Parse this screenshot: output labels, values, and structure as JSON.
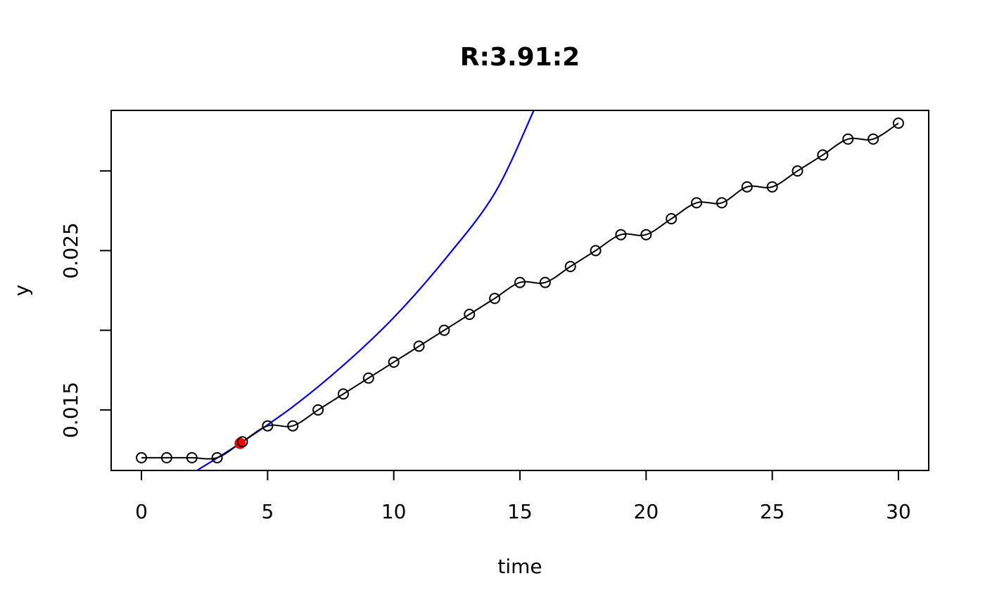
{
  "chart_data": {
    "type": "scatter",
    "title": "R:3.91:2",
    "xlabel": "time",
    "ylabel": "y",
    "xlim": [
      -1.2,
      31.2
    ],
    "ylim": [
      0.0112,
      0.0338
    ],
    "x_ticks": [
      0,
      5,
      10,
      15,
      20,
      25,
      30
    ],
    "x_tick_labels": [
      "0",
      "5",
      "10",
      "15",
      "20",
      "25",
      "30"
    ],
    "y_ticks": [
      0.015,
      0.02,
      0.025,
      0.03
    ],
    "y_tick_labels": [
      "0.015",
      "",
      "0.025",
      ""
    ],
    "grid": false,
    "legend": "none",
    "series": [
      {
        "kind": "points+smooth-line",
        "color": "#000000",
        "x": [
          0,
          1,
          2,
          3,
          4,
          5,
          6,
          7,
          8,
          9,
          10,
          11,
          12,
          13,
          14,
          15,
          16,
          17,
          18,
          19,
          20,
          21,
          22,
          23,
          24,
          25,
          26,
          27,
          28,
          29,
          30
        ],
        "y": [
          0.012,
          0.012,
          0.012,
          0.012,
          0.013,
          0.014,
          0.014,
          0.015,
          0.016,
          0.017,
          0.018,
          0.019,
          0.02,
          0.021,
          0.022,
          0.023,
          0.023,
          0.024,
          0.025,
          0.026,
          0.026,
          0.027,
          0.028,
          0.028,
          0.029,
          0.029,
          0.03,
          0.031,
          0.032,
          0.032,
          0.033
        ]
      },
      {
        "kind": "fitted-exponential",
        "color": "#0000ee",
        "x": [
          2.2,
          3.91,
          6,
          8,
          10,
          12,
          14,
          15.55
        ],
        "y": [
          0.0112,
          0.0129,
          0.0152,
          0.0178,
          0.0208,
          0.0244,
          0.0286,
          0.0338
        ]
      },
      {
        "kind": "highlight-point",
        "color": "#ff0000",
        "x": [
          3.91
        ],
        "y": [
          0.0129
        ]
      }
    ]
  }
}
